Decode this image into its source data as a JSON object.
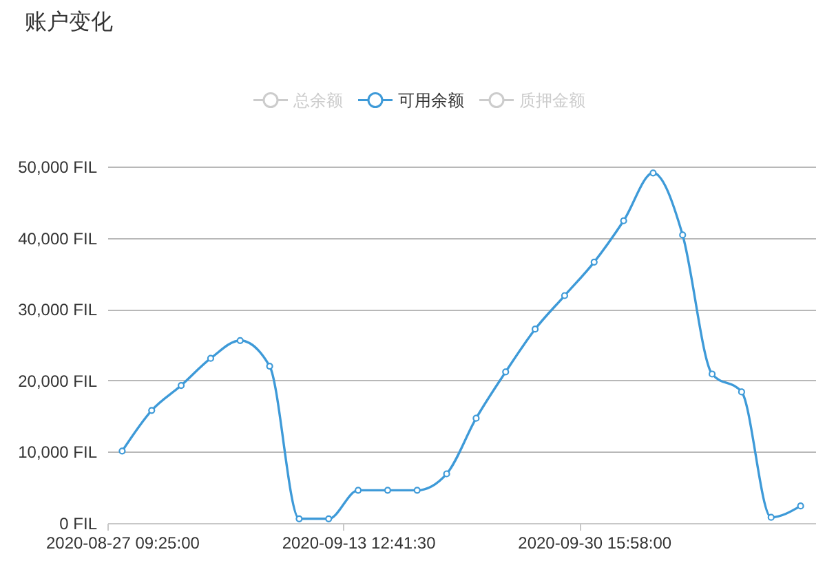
{
  "chart_data": {
    "type": "line",
    "title": "账户变化",
    "categories": [
      "2020-08-27 09:25:00",
      null,
      null,
      null,
      null,
      null,
      null,
      null,
      "2020-09-13 12:41:30",
      null,
      null,
      null,
      null,
      null,
      null,
      null,
      "2020-09-30 15:58:00",
      null,
      null,
      null,
      null,
      null,
      null,
      null
    ],
    "series": [
      {
        "name": "总余额",
        "color": "#cccccc",
        "values": [
          null,
          null,
          null,
          null,
          null,
          null,
          null,
          null,
          null,
          null,
          null,
          null,
          null,
          null,
          null,
          null,
          null,
          null,
          null,
          null,
          null,
          null,
          null,
          null
        ]
      },
      {
        "name": "可用余额",
        "color": "#3e9ad8",
        "values": [
          10100,
          15800,
          19300,
          23100,
          25600,
          22000,
          600,
          600,
          4600,
          4600,
          4600,
          6900,
          14700,
          21200,
          27200,
          31900,
          36600,
          42400,
          49100,
          40400,
          20900,
          18400,
          800,
          2400
        ]
      },
      {
        "name": "质押金额",
        "color": "#cccccc",
        "values": [
          null,
          null,
          null,
          null,
          null,
          null,
          null,
          null,
          null,
          null,
          null,
          null,
          null,
          null,
          null,
          null,
          null,
          null,
          null,
          null,
          null,
          null,
          null,
          null
        ]
      }
    ],
    "ylim": [
      0,
      50000
    ],
    "yticks": [
      {
        "value": 0,
        "label": "0 FIL"
      },
      {
        "value": 10000,
        "label": "10,000 FIL"
      },
      {
        "value": 20000,
        "label": "20,000 FIL"
      },
      {
        "value": 30000,
        "label": "30,000 FIL"
      },
      {
        "value": 40000,
        "label": "40,000 FIL"
      },
      {
        "value": 50000,
        "label": "50,000 FIL"
      }
    ],
    "grid": "y",
    "legend": "top",
    "marker": "circle",
    "line_style": "solid"
  }
}
